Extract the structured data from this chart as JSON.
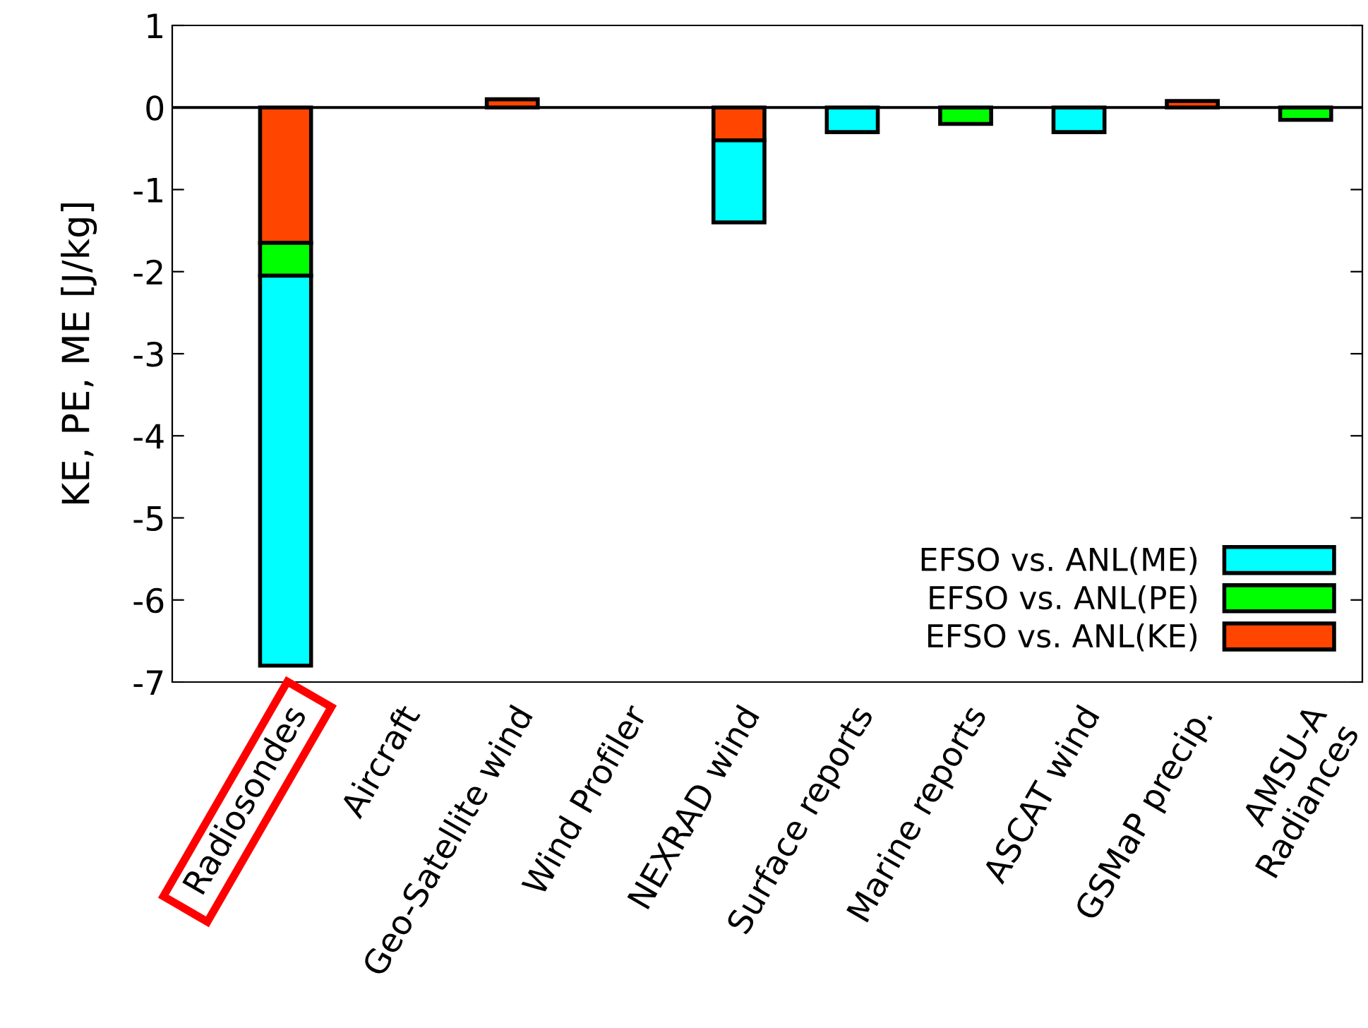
{
  "chart_data": {
    "type": "bar",
    "ylabel": "KE, PE, ME [J/kg]",
    "categories": [
      "Radiosondes",
      "Aircraft",
      "Geo-Satellite wind",
      "Wind Profiler",
      "NEXRAD wind",
      "Surface reports",
      "Marine reports",
      "ASCAT wind",
      "GSMaP precip.",
      "AMSU-A\nRadiances"
    ],
    "series": [
      {
        "name": "EFSO vs. ANL(KE)",
        "color": "#ff4500",
        "values": [
          -1.65,
          null,
          0.1,
          null,
          -0.4,
          null,
          null,
          null,
          0.08,
          null
        ]
      },
      {
        "name": "EFSO vs. ANL(PE)",
        "color": "#00ff00",
        "values": [
          -0.4,
          null,
          null,
          null,
          null,
          null,
          -0.2,
          null,
          null,
          -0.15
        ]
      },
      {
        "name": "EFSO vs. ANL(ME)",
        "color": "#00ffff",
        "values": [
          -4.75,
          null,
          null,
          null,
          -1.0,
          -0.3,
          null,
          -0.3,
          null,
          null
        ]
      }
    ],
    "stacked": true,
    "ylim": [
      -7,
      1
    ],
    "yticks": [
      -7,
      -6,
      -5,
      -4,
      -3,
      -2,
      -1,
      0,
      1
    ],
    "ref_lines": [
      {
        "axis": "y",
        "value": 0,
        "color": "#000000"
      }
    ],
    "legend": "bottom right",
    "grid": false
  }
}
